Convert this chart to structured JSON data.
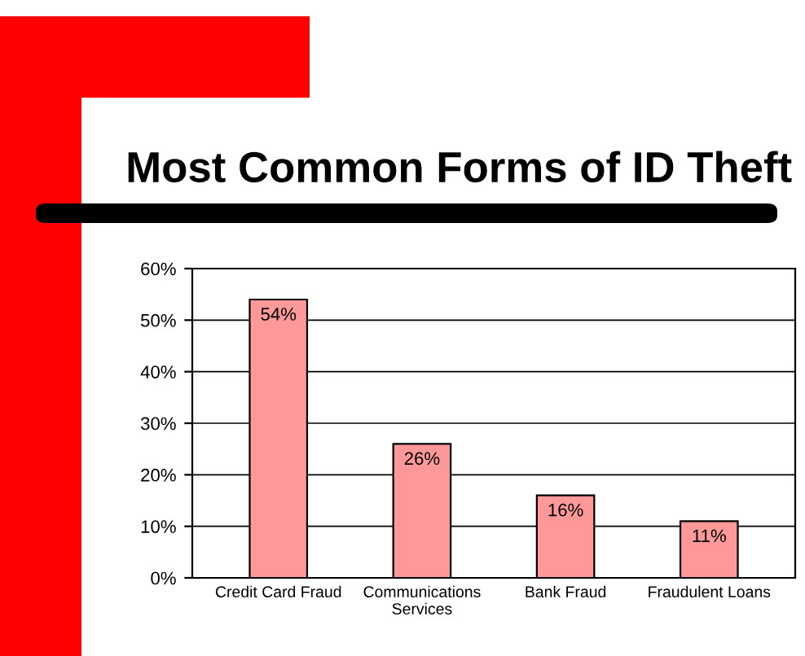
{
  "chart_data": {
    "type": "bar",
    "title": "Most Common Forms of ID Theft",
    "categories": [
      "Credit Card Fraud",
      "Communications\nServices",
      "Bank Fraud",
      "Fraudulent Loans"
    ],
    "values": [
      54,
      26,
      16,
      11
    ],
    "value_labels": [
      "54%",
      "26%",
      "16%",
      "11%"
    ],
    "color": "#ff9999",
    "ylim": [
      0,
      60
    ],
    "yticks": [
      {
        "value": 0,
        "label": "0%"
      },
      {
        "value": 10,
        "label": "10%"
      },
      {
        "value": 20,
        "label": "20%"
      },
      {
        "value": 30,
        "label": "30%"
      },
      {
        "value": 40,
        "label": "40%"
      },
      {
        "value": 50,
        "label": "50%"
      },
      {
        "value": 60,
        "label": "60%"
      }
    ],
    "grid": "y"
  }
}
